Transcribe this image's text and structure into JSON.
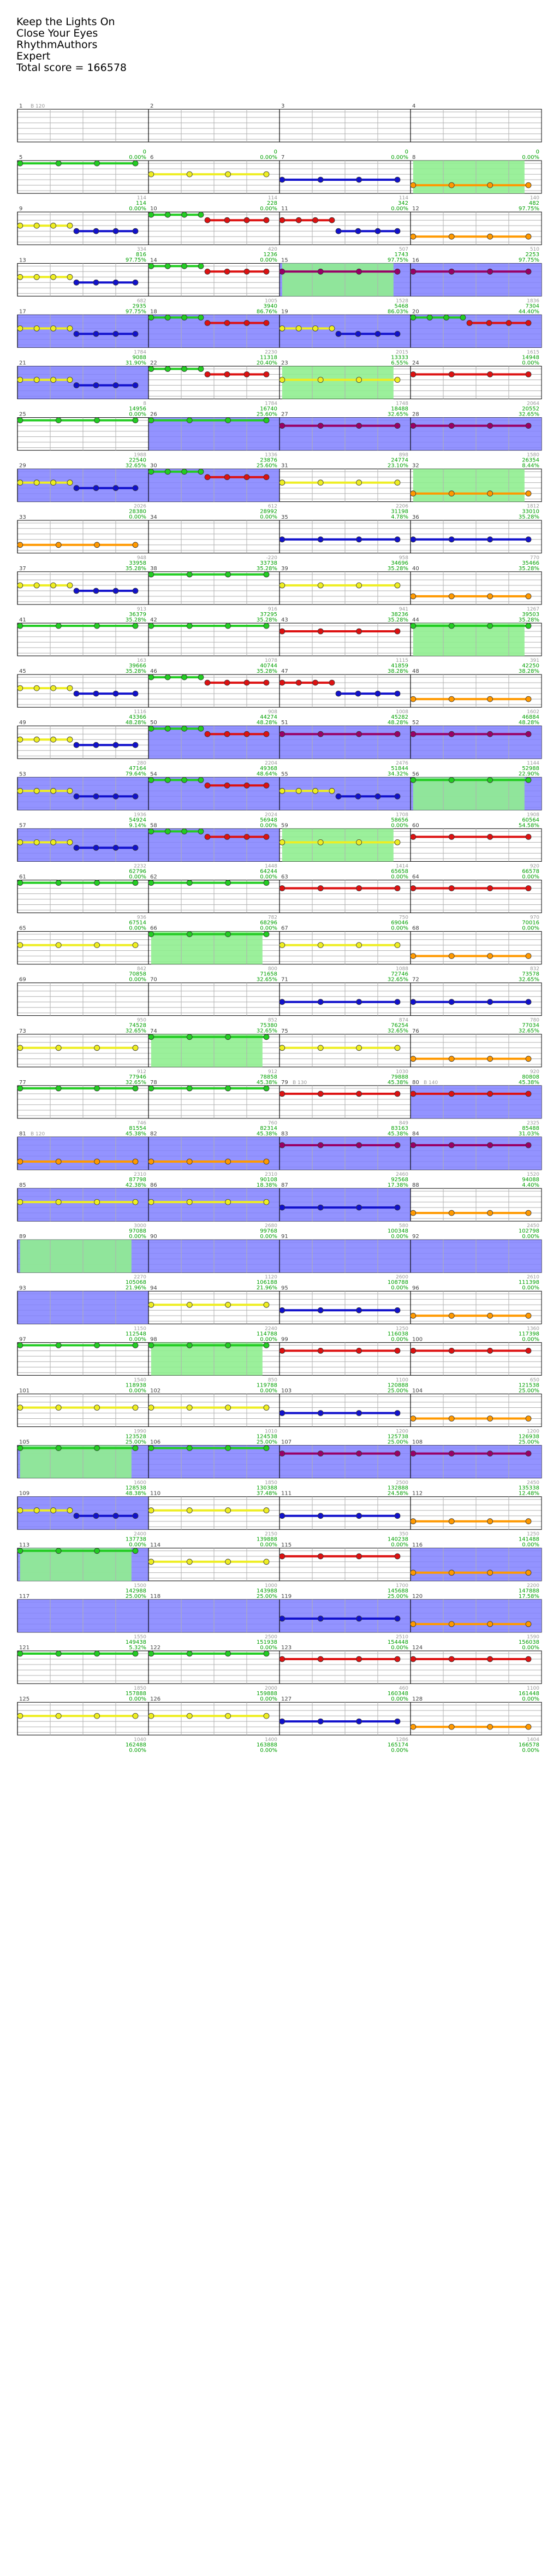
{
  "song": {
    "title": "Keep the Lights On",
    "artist": "Close Your Eyes",
    "charter": "RhythmAuthors",
    "difficulty": "Expert",
    "total_score_label": "Total score = ",
    "total_score": "166578"
  },
  "colors": {
    "green": "#22cc22",
    "red": "#dd1111",
    "yellow": "#eeee22",
    "blue": "#1111cc",
    "orange": "#ff9900",
    "purple": "#990066",
    "star_power": "#8080ff",
    "solo": "#90ee90",
    "score_text": "#00a000",
    "measure_text": "#404040",
    "staff_line": "#b0b0b0"
  },
  "bpm_marks": [
    {
      "measure": 1,
      "text": "B 120"
    },
    {
      "measure": 79,
      "text": "B 130"
    },
    {
      "measure": 80,
      "text": "B 140"
    },
    {
      "measure": 81,
      "text": "B 120"
    }
  ],
  "measures": [
    {
      "n": 1,
      "score": "0",
      "pct": "0.00%"
    },
    {
      "n": 2,
      "score": "0",
      "pct": "0.00%"
    },
    {
      "n": 3,
      "score": "0",
      "pct": "0.00%"
    },
    {
      "n": 4,
      "score": "0",
      "pct": "0.00%"
    },
    {
      "n": 5,
      "score": "114",
      "pct": "0.00%",
      "notes": "green",
      "sub": "114"
    },
    {
      "n": 6,
      "score": "228",
      "pct": "0.00%",
      "notes": "yellow",
      "sub": "114"
    },
    {
      "n": 7,
      "score": "342",
      "pct": "0.00%",
      "notes": "blue",
      "sub": "114"
    },
    {
      "n": 8,
      "score": "482",
      "pct": "97.75%",
      "notes": "orange",
      "solo": true,
      "sub": "140"
    },
    {
      "n": 9,
      "score": "816",
      "pct": "97.75%",
      "notes": "yellowblue",
      "sub": "334"
    },
    {
      "n": 10,
      "score": "1236",
      "pct": "0.00%",
      "notes": "greenred",
      "sub": "420"
    },
    {
      "n": 11,
      "score": "1743",
      "pct": "97.75%",
      "notes": "redblue",
      "sub": "507"
    },
    {
      "n": 12,
      "score": "2253",
      "pct": "97.75%",
      "notes": "orange",
      "sub": "510"
    },
    {
      "n": 13,
      "score": "2935",
      "pct": "97.75%",
      "notes": "yellowblue",
      "sub": "682"
    },
    {
      "n": 14,
      "score": "3940",
      "pct": "86.76%",
      "notes": "greenred",
      "sub": "1005"
    },
    {
      "n": 15,
      "score": "5468",
      "pct": "86.03%",
      "notes": "purple",
      "sp": true,
      "solo": true,
      "sub": "1528"
    },
    {
      "n": 16,
      "score": "7304",
      "pct": "44.40%",
      "notes": "purple",
      "sp": true,
      "sub": "1836"
    },
    {
      "n": 17,
      "score": "9088",
      "pct": "31.90%",
      "notes": "yellowblue",
      "sp": true,
      "sub": "1784"
    },
    {
      "n": 18,
      "score": "11318",
      "pct": "20.40%",
      "notes": "greenred",
      "sp": true,
      "sub": "2230"
    },
    {
      "n": 19,
      "score": "13333",
      "pct": "6.55%",
      "notes": "yellowblue",
      "sp": true,
      "sub": "2015"
    },
    {
      "n": 20,
      "score": "14948",
      "pct": "0.00%",
      "notes": "greenred",
      "sp": true,
      "sub": "1615"
    },
    {
      "n": 21,
      "score": "14956",
      "pct": "0.00%",
      "notes": "yellowblue",
      "sp": true,
      "sub": "8"
    },
    {
      "n": 22,
      "score": "16740",
      "pct": "25.60%",
      "notes": "greenred",
      "sub": "1784"
    },
    {
      "n": 23,
      "score": "18488",
      "pct": "32.65%",
      "notes": "yellow",
      "solo": true,
      "sub": "1748"
    },
    {
      "n": 24,
      "score": "20552",
      "pct": "32.65%",
      "notes": "red",
      "sub": "2064"
    },
    {
      "n": 25,
      "score": "22540",
      "pct": "32.65%",
      "notes": "green",
      "sub": "1988"
    },
    {
      "n": 26,
      "score": "23876",
      "pct": "25.60%",
      "notes": "green",
      "sp": true,
      "sub": "1336"
    },
    {
      "n": 27,
      "score": "24774",
      "pct": "23.10%",
      "notes": "purple",
      "sp": true,
      "sub": "898"
    },
    {
      "n": 28,
      "score": "26354",
      "pct": "8.44%",
      "notes": "purple",
      "sp": true,
      "sub": "1580"
    },
    {
      "n": 29,
      "score": "28380",
      "pct": "0.00%",
      "notes": "yellowblue",
      "sp": true,
      "sub": "2026"
    },
    {
      "n": 30,
      "score": "28992",
      "pct": "0.00%",
      "notes": "greenred",
      "sp": true,
      "sub": "612"
    },
    {
      "n": 31,
      "score": "31198",
      "pct": "4.78%",
      "notes": "yellow",
      "sub": "2206"
    },
    {
      "n": 32,
      "score": "33010",
      "pct": "35.28%",
      "notes": "orange",
      "solo": true,
      "sub": "1812"
    },
    {
      "n": 33,
      "score": "33958",
      "pct": "35.28%",
      "notes": "orange",
      "sub": "948"
    },
    {
      "n": 34,
      "score": "33738",
      "pct": "35.28%",
      "notes": "none",
      "sub": "-220"
    },
    {
      "n": 35,
      "score": "34696",
      "pct": "35.28%",
      "notes": "blue",
      "sub": "958"
    },
    {
      "n": 36,
      "score": "35466",
      "pct": "35.28%",
      "notes": "blue",
      "sub": "770"
    },
    {
      "n": 37,
      "score": "36379",
      "pct": "35.28%",
      "notes": "yellowblue",
      "sub": "913"
    },
    {
      "n": 38,
      "score": "37295",
      "pct": "35.28%",
      "notes": "green",
      "sub": "916"
    },
    {
      "n": 39,
      "score": "38236",
      "pct": "35.28%",
      "notes": "yellow",
      "sub": "941"
    },
    {
      "n": 40,
      "score": "39503",
      "pct": "35.28%",
      "notes": "orange",
      "sub": "1267"
    },
    {
      "n": 41,
      "score": "39666",
      "pct": "35.28%",
      "notes": "green",
      "sub": "163"
    },
    {
      "n": 42,
      "score": "40744",
      "pct": "35.28%",
      "notes": "green",
      "sub": "1078"
    },
    {
      "n": 43,
      "score": "41859",
      "pct": "38.28%",
      "notes": "red",
      "sub": "1115"
    },
    {
      "n": 44,
      "score": "42250",
      "pct": "38.28%",
      "notes": "green",
      "solo": true,
      "sub": "391"
    },
    {
      "n": 45,
      "score": "43366",
      "pct": "48.28%",
      "notes": "yellowblue",
      "sub": "1116"
    },
    {
      "n": 46,
      "score": "44274",
      "pct": "48.28%",
      "notes": "greenred",
      "sub": "908"
    },
    {
      "n": 47,
      "score": "45282",
      "pct": "48.28%",
      "notes": "redblue",
      "sub": "1008"
    },
    {
      "n": 48,
      "score": "46884",
      "pct": "48.28%",
      "notes": "orange",
      "sub": "1602"
    },
    {
      "n": 49,
      "score": "47164",
      "pct": "79.64%",
      "notes": "yellowblue",
      "sub": "280"
    },
    {
      "n": 50,
      "score": "49368",
      "pct": "48.64%",
      "notes": "greenred",
      "sp": true,
      "sub": "2204"
    },
    {
      "n": 51,
      "score": "51844",
      "pct": "34.32%",
      "notes": "purple",
      "sp": true,
      "sub": "2476"
    },
    {
      "n": 52,
      "score": "52988",
      "pct": "22.90%",
      "notes": "purple",
      "sp": true,
      "sub": "1144"
    },
    {
      "n": 53,
      "score": "54924",
      "pct": "9.14%",
      "notes": "yellowblue",
      "sp": true,
      "sub": "1936"
    },
    {
      "n": 54,
      "score": "56948",
      "pct": "0.00%",
      "notes": "greenred",
      "sp": true,
      "sub": "2024"
    },
    {
      "n": 55,
      "score": "58656",
      "pct": "0.00%",
      "notes": "yellowblue",
      "sp": true,
      "sub": "1708"
    },
    {
      "n": 56,
      "score": "60564",
      "pct": "54.58%",
      "notes": "green",
      "sp": true,
      "solo": true,
      "sub": "1908"
    },
    {
      "n": 57,
      "score": "62796",
      "pct": "0.00%",
      "notes": "yellowblue",
      "sp": true,
      "sub": "2232"
    },
    {
      "n": 58,
      "score": "64244",
      "pct": "0.00%",
      "notes": "greenred",
      "sp": true,
      "sub": "1448"
    },
    {
      "n": 59,
      "score": "65658",
      "pct": "0.00%",
      "notes": "yellow",
      "solo": true,
      "sub": "1414"
    },
    {
      "n": 60,
      "score": "66578",
      "pct": "0.00%",
      "notes": "red",
      "sub": "920"
    },
    {
      "n": 61,
      "score": "67514",
      "pct": "0.00%",
      "notes": "green",
      "sub": "936"
    },
    {
      "n": 62,
      "score": "68296",
      "pct": "0.00%",
      "notes": "green",
      "sub": "782"
    },
    {
      "n": 63,
      "score": "69046",
      "pct": "0.00%",
      "notes": "red",
      "sub": "750"
    },
    {
      "n": 64,
      "score": "70016",
      "pct": "0.00%",
      "notes": "red",
      "sub": "970"
    },
    {
      "n": 65,
      "score": "70858",
      "pct": "0.00%",
      "notes": "yellow",
      "sub": "842"
    },
    {
      "n": 66,
      "score": "71658",
      "pct": "32.65%",
      "notes": "green",
      "solo": true,
      "sub": "800"
    },
    {
      "n": 67,
      "score": "72746",
      "pct": "32.65%",
      "notes": "yellow",
      "sub": "1088"
    },
    {
      "n": 68,
      "score": "73578",
      "pct": "32.65%",
      "notes": "orange",
      "sub": "832"
    },
    {
      "n": 69,
      "score": "74528",
      "pct": "32.65%",
      "notes": "none",
      "sub": "950"
    },
    {
      "n": 70,
      "score": "75380",
      "pct": "32.65%",
      "notes": "none",
      "sub": "852"
    },
    {
      "n": 71,
      "score": "76254",
      "pct": "32.65%",
      "notes": "blue",
      "sub": "874"
    },
    {
      "n": 72,
      "score": "77034",
      "pct": "32.65%",
      "notes": "blue",
      "sub": "780"
    },
    {
      "n": 73,
      "score": "77946",
      "pct": "32.65%",
      "notes": "yellow",
      "sub": "912"
    },
    {
      "n": 74,
      "score": "78858",
      "pct": "45.38%",
      "notes": "green",
      "solo": true,
      "sub": "912"
    },
    {
      "n": 75,
      "score": "79888",
      "pct": "45.38%",
      "notes": "yellow",
      "sub": "1030"
    },
    {
      "n": 76,
      "score": "80808",
      "pct": "45.38%",
      "notes": "orange",
      "sub": "920"
    },
    {
      "n": 77,
      "score": "81554",
      "pct": "45.38%",
      "notes": "green",
      "sub": "746"
    },
    {
      "n": 78,
      "score": "82314",
      "pct": "45.38%",
      "notes": "green",
      "sub": "760"
    },
    {
      "n": 79,
      "score": "83163",
      "pct": "45.38%",
      "notes": "red",
      "sub": "849"
    },
    {
      "n": 80,
      "score": "85488",
      "pct": "31.03%",
      "notes": "red",
      "sp": true,
      "sub": "2325"
    },
    {
      "n": 81,
      "score": "87798",
      "pct": "42.38%",
      "notes": "orange",
      "sp": true,
      "sub": "2310"
    },
    {
      "n": 82,
      "score": "90108",
      "pct": "18.38%",
      "notes": "orange",
      "sp": true,
      "sub": "2310"
    },
    {
      "n": 83,
      "score": "92568",
      "pct": "17.38%",
      "notes": "purple",
      "sp": true,
      "sub": "2460"
    },
    {
      "n": 84,
      "score": "94088",
      "pct": "4.40%",
      "notes": "purple",
      "sp": true,
      "sub": "1520"
    },
    {
      "n": 85,
      "score": "97088",
      "pct": "0.00%",
      "notes": "yellow",
      "sp": true,
      "sub": "3000"
    },
    {
      "n": 86,
      "score": "99768",
      "pct": "0.00%",
      "notes": "yellow",
      "sp": true,
      "sub": "2680"
    },
    {
      "n": 87,
      "score": "100348",
      "pct": "0.00%",
      "notes": "blue",
      "sp": true,
      "sub": "580"
    },
    {
      "n": 88,
      "score": "102798",
      "pct": "0.00%",
      "notes": "orange",
      "sub": "2450"
    },
    {
      "n": 89,
      "score": "105068",
      "pct": "21.96%",
      "notes": "none",
      "sp": true,
      "solo": true,
      "sub": "2270"
    },
    {
      "n": 90,
      "score": "106188",
      "pct": "21.96%",
      "notes": "none",
      "sp": true,
      "sub": "1120"
    },
    {
      "n": 91,
      "score": "108788",
      "pct": "0.00%",
      "notes": "none",
      "sp": true,
      "sub": "2600"
    },
    {
      "n": 92,
      "score": "111398",
      "pct": "0.00%",
      "notes": "none",
      "sp": true,
      "sub": "2610"
    },
    {
      "n": 93,
      "score": "112548",
      "pct": "0.00%",
      "notes": "none",
      "sp": true,
      "sub": "1150"
    },
    {
      "n": 94,
      "score": "114788",
      "pct": "0.00%",
      "notes": "yellow",
      "sub": "2240"
    },
    {
      "n": 95,
      "score": "116038",
      "pct": "0.00%",
      "notes": "blue",
      "sub": "1250"
    },
    {
      "n": 96,
      "score": "117398",
      "pct": "0.00%",
      "notes": "orange",
      "sub": "1360"
    },
    {
      "n": 97,
      "score": "118938",
      "pct": "0.00%",
      "notes": "green",
      "sub": "1540"
    },
    {
      "n": 98,
      "score": "119788",
      "pct": "0.00%",
      "notes": "green",
      "solo": true,
      "sub": "850"
    },
    {
      "n": 99,
      "score": "120888",
      "pct": "25.00%",
      "notes": "red",
      "sub": "1100"
    },
    {
      "n": 100,
      "score": "121538",
      "pct": "25.00%",
      "notes": "red",
      "sub": "650"
    },
    {
      "n": 101,
      "score": "123528",
      "pct": "25.00%",
      "notes": "yellow",
      "sub": "1990"
    },
    {
      "n": 102,
      "score": "124538",
      "pct": "25.00%",
      "notes": "yellow",
      "sub": "1010"
    },
    {
      "n": 103,
      "score": "125738",
      "pct": "25.00%",
      "notes": "blue",
      "sub": "1200"
    },
    {
      "n": 104,
      "score": "126938",
      "pct": "25.00%",
      "notes": "orange",
      "sub": "1200"
    },
    {
      "n": 105,
      "score": "128538",
      "pct": "48.38%",
      "notes": "green",
      "solo": true,
      "sp": true,
      "sub": "1600"
    },
    {
      "n": 106,
      "score": "130388",
      "pct": "37.48%",
      "notes": "green",
      "sp": true,
      "sub": "1850"
    },
    {
      "n": 107,
      "score": "132888",
      "pct": "24.58%",
      "notes": "purple",
      "sp": true,
      "sub": "2500"
    },
    {
      "n": 108,
      "score": "135338",
      "pct": "12.48%",
      "notes": "purple",
      "sp": true,
      "sub": "2450"
    },
    {
      "n": 109,
      "score": "137738",
      "pct": "0.00%",
      "notes": "yellowblue",
      "sp": true,
      "sub": "2400"
    },
    {
      "n": 110,
      "score": "139888",
      "pct": "0.00%",
      "notes": "yellow",
      "sub": "2150"
    },
    {
      "n": 111,
      "score": "140238",
      "pct": "0.00%",
      "notes": "blue",
      "sub": "350"
    },
    {
      "n": 112,
      "score": "141488",
      "pct": "0.00%",
      "notes": "orange",
      "sub": "1250"
    },
    {
      "n": 113,
      "score": "142988",
      "pct": "25.00%",
      "notes": "green",
      "solo": true,
      "sp": true,
      "sub": "1500"
    },
    {
      "n": 114,
      "score": "143988",
      "pct": "25.00%",
      "notes": "yellow",
      "sub": "1000"
    },
    {
      "n": 115,
      "score": "145688",
      "pct": "25.00%",
      "notes": "red",
      "sub": "1700"
    },
    {
      "n": 116,
      "score": "147888",
      "pct": "17.58%",
      "notes": "orange",
      "sp": true,
      "sub": "2200"
    },
    {
      "n": 117,
      "score": "149438",
      "pct": "5.32%",
      "notes": "none",
      "sp": true,
      "sub": "1550"
    },
    {
      "n": 118,
      "score": "151938",
      "pct": "0.00%",
      "notes": "none",
      "sp": true,
      "sub": "2500"
    },
    {
      "n": 119,
      "score": "154448",
      "pct": "0.00%",
      "notes": "blue",
      "sp": true,
      "sub": "2510"
    },
    {
      "n": 120,
      "score": "156038",
      "pct": "0.00%",
      "notes": "orange",
      "sp": true,
      "sub": "1590"
    },
    {
      "n": 121,
      "score": "157888",
      "pct": "0.00%",
      "notes": "green",
      "sub": "1850"
    },
    {
      "n": 122,
      "score": "159888",
      "pct": "0.00%",
      "notes": "green",
      "sub": "2000"
    },
    {
      "n": 123,
      "score": "160348",
      "pct": "0.00%",
      "notes": "red",
      "sub": "460"
    },
    {
      "n": 124,
      "score": "161448",
      "pct": "0.00%",
      "notes": "red",
      "sub": "1100"
    },
    {
      "n": 125,
      "score": "162488",
      "pct": "0.00%",
      "notes": "yellow",
      "sub": "1040"
    },
    {
      "n": 126,
      "score": "163888",
      "pct": "0.00%",
      "notes": "yellow",
      "sub": "1400"
    },
    {
      "n": 127,
      "score": "165174",
      "pct": "0.00%",
      "notes": "blue",
      "sub": "1286"
    },
    {
      "n": 128,
      "score": "166578",
      "pct": "0.00%",
      "notes": "orange",
      "sub": "1404"
    }
  ]
}
